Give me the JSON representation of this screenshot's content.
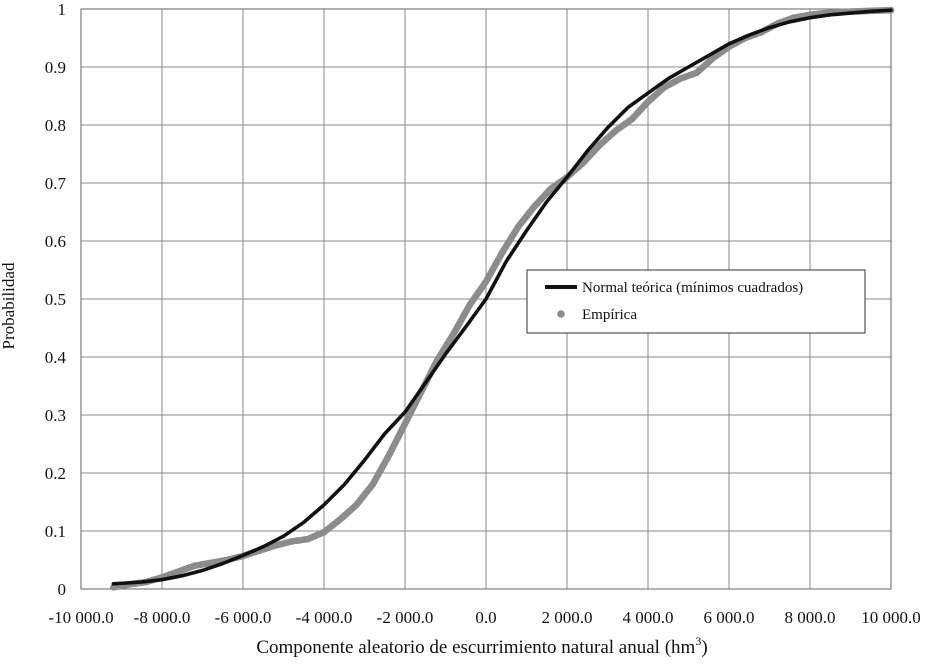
{
  "chart_data": {
    "type": "line",
    "title": "",
    "xlabel": "Componente aleatorio de escurrimiento natural anual (hm",
    "xlabel_superscript": "3",
    "xlabel_suffix": ")",
    "ylabel": "Probabilidad",
    "xlim": [
      -10000,
      10000
    ],
    "ylim": [
      0,
      1
    ],
    "x_ticks": [
      -10000,
      -8000,
      -6000,
      -4000,
      -2000,
      0,
      2000,
      4000,
      6000,
      8000,
      10000
    ],
    "x_tick_labels": [
      "-10 000.0",
      "-8 000.0",
      "-6 000.0",
      "-4 000.0",
      "-2 000.0",
      "0.0",
      "2 000.0",
      "4 000.0",
      "6 000.0",
      "8 000.0",
      "10 000.0"
    ],
    "y_ticks": [
      0,
      0.1,
      0.2,
      0.3,
      0.4,
      0.5,
      0.6,
      0.7,
      0.8,
      0.9,
      1
    ],
    "y_tick_labels": [
      "0",
      "0.1",
      "0.2",
      "0.3",
      "0.4",
      "0.5",
      "0.6",
      "0.7",
      "0.8",
      "0.9",
      "1"
    ],
    "grid": true,
    "legend_position": "right-center",
    "colors": {
      "theoretical": "#111111",
      "empirical": "#8c8c8c",
      "grid": "#888888"
    },
    "series": [
      {
        "name": "Normal teórica (mínimos cuadrados)",
        "style": "line",
        "x": [
          -9200,
          -8500,
          -8000,
          -7500,
          -7000,
          -6500,
          -6000,
          -5500,
          -5000,
          -4500,
          -4000,
          -3500,
          -3000,
          -2500,
          -2000,
          -1500,
          -1000,
          -500,
          0,
          500,
          1000,
          1500,
          2000,
          2500,
          3000,
          3500,
          4000,
          4500,
          5000,
          5500,
          6000,
          6500,
          7000,
          7500,
          8000,
          8500,
          9000,
          9500,
          10000
        ],
        "y": [
          0.009,
          0.012,
          0.016,
          0.023,
          0.032,
          0.044,
          0.058,
          0.073,
          0.091,
          0.115,
          0.145,
          0.18,
          0.222,
          0.268,
          0.305,
          0.355,
          0.405,
          0.452,
          0.5,
          0.565,
          0.618,
          0.668,
          0.71,
          0.755,
          0.795,
          0.83,
          0.855,
          0.88,
          0.9,
          0.92,
          0.94,
          0.955,
          0.968,
          0.978,
          0.985,
          0.99,
          0.993,
          0.996,
          0.998
        ]
      },
      {
        "name": "Empírica",
        "style": "points",
        "x": [
          -9200,
          -8800,
          -8400,
          -8000,
          -7600,
          -7200,
          -6800,
          -6400,
          -6000,
          -5600,
          -5200,
          -4800,
          -4400,
          -4000,
          -3600,
          -3200,
          -2800,
          -2400,
          -2000,
          -1600,
          -1200,
          -800,
          -400,
          0,
          400,
          800,
          1200,
          1600,
          2000,
          2400,
          2800,
          3200,
          3600,
          4000,
          4400,
          4800,
          5200,
          5600,
          6000,
          6400,
          6800,
          7200,
          7600,
          8000,
          8400,
          8800,
          9200,
          9600,
          10000
        ],
        "y": [
          0.003,
          0.008,
          0.012,
          0.02,
          0.03,
          0.04,
          0.045,
          0.05,
          0.057,
          0.066,
          0.075,
          0.082,
          0.086,
          0.098,
          0.12,
          0.145,
          0.18,
          0.23,
          0.285,
          0.34,
          0.395,
          0.44,
          0.49,
          0.53,
          0.58,
          0.625,
          0.66,
          0.69,
          0.71,
          0.735,
          0.765,
          0.79,
          0.81,
          0.84,
          0.865,
          0.88,
          0.89,
          0.915,
          0.935,
          0.95,
          0.96,
          0.975,
          0.985,
          0.99,
          0.993,
          0.995,
          0.996,
          0.997,
          0.998
        ]
      }
    ]
  }
}
